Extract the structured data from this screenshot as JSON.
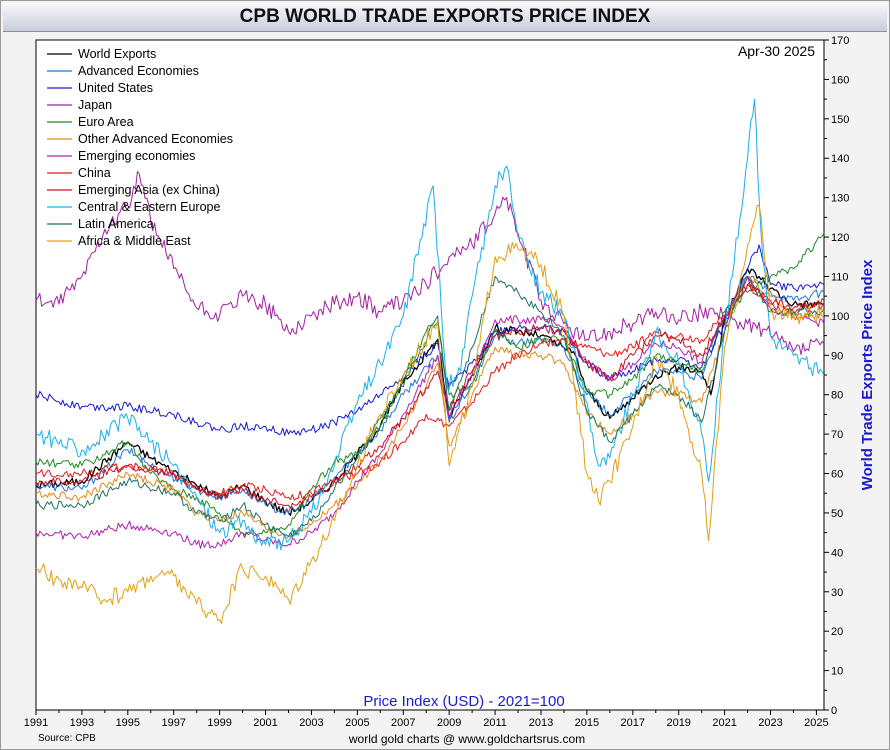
{
  "title": "CPB WORLD TRADE EXPORTS PRICE INDEX",
  "date_label": "Apr-30  2025",
  "source": "Source: CPB",
  "footer": "world gold charts @ www.goldchartsrus.com",
  "chart_data": {
    "type": "line",
    "title": "CPB WORLD TRADE EXPORTS PRICE INDEX",
    "xlabel": "Price Index (USD) - 2021=100",
    "ylabel": "World Trade Exports Price Index",
    "xlim": [
      1991,
      2025.33
    ],
    "ylim": [
      0,
      170
    ],
    "x_ticks": [
      "1991",
      "1993",
      "1995",
      "1997",
      "1999",
      "2001",
      "2003",
      "2005",
      "2007",
      "2009",
      "2011",
      "2013",
      "2015",
      "2017",
      "2019",
      "2021",
      "2023",
      "2025"
    ],
    "y_ticks": [
      0,
      10,
      20,
      30,
      40,
      50,
      60,
      70,
      80,
      90,
      100,
      110,
      120,
      130,
      140,
      150,
      160,
      170
    ],
    "grid": false,
    "legend_position": "top-left",
    "series": [
      {
        "name": "World Exports",
        "color": "#000000",
        "x": [
          1991,
          1993,
          1995,
          1996,
          1998,
          1999,
          2000,
          2001,
          2002,
          2003,
          2004,
          2005,
          2006,
          2007,
          2008.5,
          2009,
          2010,
          2011,
          2012,
          2013,
          2014,
          2014.5,
          2015,
          2016,
          2017,
          2018,
          2019,
          2020,
          2020.4,
          2021,
          2022,
          2022.5,
          2023,
          2024,
          2025.33
        ],
        "y": [
          57,
          58,
          68,
          64,
          57,
          54,
          57,
          53,
          50,
          53,
          58,
          65,
          72,
          83,
          94,
          74,
          85,
          97,
          96,
          95,
          92,
          90,
          81,
          74,
          79,
          85,
          87,
          86,
          80,
          99,
          112,
          110,
          107,
          103,
          103
        ]
      },
      {
        "name": "Advanced Economies",
        "color": "#1f77d4",
        "x": [
          1991,
          1993,
          1995,
          1996,
          1998,
          1999,
          2000,
          2001,
          2002,
          2003,
          2004,
          2005,
          2006,
          2007,
          2008.5,
          2009,
          2010,
          2011,
          2012,
          2013,
          2014,
          2015,
          2016,
          2017,
          2018,
          2019,
          2020,
          2021,
          2022,
          2023,
          2024,
          2025.33
        ],
        "y": [
          57,
          56,
          66,
          62,
          56,
          54,
          56,
          52,
          50,
          53,
          59,
          65,
          71,
          80,
          90,
          73,
          83,
          95,
          93,
          94,
          92,
          80,
          75,
          80,
          86,
          86,
          84,
          100,
          110,
          106,
          104,
          106
        ]
      },
      {
        "name": "United States",
        "color": "#1a1ad0",
        "x": [
          1991,
          1993,
          1995,
          1997,
          1998,
          1999,
          2000,
          2001,
          2002,
          2003,
          2004,
          2005,
          2006,
          2007,
          2008.5,
          2009,
          2010,
          2011,
          2012,
          2013,
          2014,
          2015,
          2016,
          2017,
          2018,
          2019,
          2020,
          2021,
          2022,
          2022.5,
          2023,
          2024,
          2025.33
        ],
        "y": [
          80,
          77,
          77,
          75,
          73,
          71,
          72,
          72,
          70,
          71,
          73,
          76,
          80,
          85,
          93,
          82,
          88,
          96,
          97,
          97,
          96,
          88,
          84,
          86,
          89,
          89,
          87,
          98,
          112,
          118,
          108,
          107,
          108
        ]
      },
      {
        "name": "Japan",
        "color": "#a020a0",
        "x": [
          1991,
          1992,
          1993,
          1994,
          1995,
          1995.5,
          1996,
          1997,
          1998,
          1999,
          2000,
          2001,
          2002,
          2003,
          2004,
          2005,
          2006,
          2007,
          2008,
          2009,
          2010,
          2011,
          2011.5,
          2012,
          2013,
          2014,
          2015,
          2016,
          2017,
          2018,
          2019,
          2020,
          2021,
          2022,
          2023,
          2024,
          2025.33
        ],
        "y": [
          104,
          103,
          110,
          122,
          128,
          136,
          124,
          112,
          102,
          100,
          105,
          103,
          96,
          100,
          103,
          105,
          101,
          104,
          108,
          115,
          118,
          126,
          130,
          121,
          104,
          98,
          94,
          96,
          98,
          101,
          99,
          101,
          100,
          98,
          95,
          91,
          93
        ]
      },
      {
        "name": "Euro Area",
        "color": "#1f8a1f",
        "x": [
          1991,
          1993,
          1995,
          1996,
          1997,
          1998,
          1999,
          2000,
          2001,
          2002,
          2003,
          2004,
          2005,
          2006,
          2007,
          2008,
          2008.5,
          2009,
          2010,
          2011,
          2012,
          2013,
          2014,
          2015,
          2016,
          2017,
          2018,
          2019,
          2020,
          2021,
          2022,
          2023,
          2024,
          2025.33
        ],
        "y": [
          63,
          62,
          68,
          60,
          56,
          54,
          50,
          45,
          45,
          47,
          56,
          63,
          65,
          72,
          84,
          96,
          98,
          80,
          82,
          97,
          92,
          94,
          94,
          81,
          80,
          84,
          90,
          88,
          86,
          101,
          106,
          110,
          112,
          121
        ]
      },
      {
        "name": "Other Advanced Economies",
        "color": "#e08a1a",
        "x": [
          1991,
          1993,
          1995,
          1997,
          1998,
          1999,
          2000,
          2001,
          2002,
          2003,
          2004,
          2005,
          2006,
          2007,
          2008.5,
          2009,
          2010,
          2011,
          2012,
          2013,
          2014,
          2015,
          2016,
          2017,
          2018,
          2019,
          2020,
          2021,
          2022,
          2023,
          2024,
          2025.33
        ],
        "y": [
          55,
          54,
          60,
          56,
          50,
          48,
          50,
          46,
          44,
          47,
          52,
          57,
          64,
          72,
          88,
          67,
          80,
          92,
          90,
          90,
          88,
          75,
          70,
          75,
          81,
          80,
          78,
          96,
          110,
          105,
          100,
          100
        ]
      },
      {
        "name": "Emerging economies",
        "color": "#b020b0",
        "x": [
          1991,
          1993,
          1995,
          1997,
          1998,
          1999,
          2000,
          2001,
          2002,
          2003,
          2004,
          2005,
          2006,
          2007,
          2008.5,
          2009,
          2010,
          2011,
          2012,
          2013,
          2014,
          2015,
          2016,
          2017,
          2018,
          2019,
          2020,
          2021,
          2022,
          2023,
          2024,
          2025.33
        ],
        "y": [
          45,
          44,
          47,
          45,
          42,
          42,
          45,
          43,
          42,
          45,
          50,
          58,
          65,
          75,
          90,
          74,
          85,
          99,
          99,
          99,
          97,
          88,
          84,
          88,
          93,
          92,
          88,
          100,
          110,
          102,
          100,
          98
        ]
      },
      {
        "name": "China",
        "color": "#e01a1a",
        "x": [
          1991,
          1993,
          1995,
          1997,
          1998,
          1999,
          2000,
          2001,
          2002,
          2003,
          2004,
          2005,
          2006,
          2007,
          2008,
          2009,
          2010,
          2011,
          2012,
          2013,
          2014,
          2015,
          2016,
          2017,
          2018,
          2019,
          2020,
          2021,
          2022,
          2023,
          2024,
          2025.33
        ],
        "y": [
          60,
          60,
          62,
          60,
          56,
          55,
          57,
          56,
          54,
          55,
          58,
          60,
          63,
          68,
          75,
          72,
          78,
          86,
          90,
          93,
          94,
          92,
          90,
          92,
          96,
          95,
          94,
          100,
          108,
          103,
          101,
          103
        ]
      },
      {
        "name": "Emerging Asia (ex China)",
        "color": "#c8101a",
        "x": [
          1991,
          1993,
          1995,
          1997,
          1998,
          1999,
          2000,
          2001,
          2002,
          2003,
          2004,
          2005,
          2006,
          2007,
          2008.5,
          2009,
          2010,
          2011,
          2012,
          2013,
          2014,
          2015,
          2016,
          2017,
          2018,
          2019,
          2020,
          2021,
          2022,
          2023,
          2024,
          2025.33
        ],
        "y": [
          58,
          58,
          62,
          60,
          56,
          54,
          56,
          53,
          52,
          54,
          58,
          62,
          67,
          74,
          86,
          76,
          86,
          95,
          96,
          97,
          96,
          88,
          84,
          90,
          95,
          94,
          90,
          100,
          108,
          104,
          102,
          104
        ]
      },
      {
        "name": "Central & Eastern Europe",
        "color": "#1ab0e8",
        "x": [
          1991,
          1993,
          1995,
          1996,
          1997,
          1998,
          1999,
          2000,
          2001,
          2002,
          2003,
          2004,
          2005,
          2006,
          2007,
          2008.3,
          2008.9,
          2009.5,
          2010,
          2011,
          2011.5,
          2012,
          2013,
          2014,
          2015,
          2015.5,
          2016,
          2017,
          2018,
          2019,
          2020,
          2020.3,
          2021,
          2022,
          2022.3,
          2022.6,
          2023,
          2024,
          2025.33
        ],
        "y": [
          70,
          66,
          74,
          68,
          62,
          54,
          45,
          48,
          42,
          43,
          50,
          62,
          78,
          88,
          100,
          133,
          82,
          86,
          105,
          133,
          138,
          120,
          106,
          100,
          78,
          62,
          64,
          80,
          96,
          88,
          70,
          58,
          96,
          140,
          155,
          120,
          95,
          90,
          85
        ]
      },
      {
        "name": "Latin America",
        "color": "#1f7060",
        "x": [
          1991,
          1993,
          1995,
          1997,
          1998,
          1999,
          2000,
          2001,
          2002,
          2003,
          2004,
          2005,
          2006,
          2007,
          2008.5,
          2009,
          2010,
          2011,
          2012,
          2013,
          2014,
          2015,
          2016,
          2017,
          2018,
          2019,
          2020,
          2021,
          2022,
          2023,
          2024,
          2025.33
        ],
        "y": [
          52,
          52,
          58,
          55,
          50,
          48,
          52,
          47,
          44,
          48,
          56,
          64,
          74,
          82,
          100,
          76,
          92,
          110,
          106,
          101,
          95,
          76,
          68,
          75,
          82,
          80,
          73,
          96,
          110,
          101,
          101,
          101
        ]
      },
      {
        "name": "Africa & Middle East",
        "color": "#e0a010",
        "x": [
          1991,
          1992,
          1993,
          1994,
          1995,
          1996,
          1997,
          1998,
          1999,
          2000,
          2001,
          2002,
          2003,
          2004,
          2005,
          2006,
          2007,
          2008.5,
          2009,
          2010,
          2011,
          2012,
          2013,
          2014,
          2015,
          2015.5,
          2016,
          2017,
          2018,
          2019,
          2020,
          2020.3,
          2021,
          2022,
          2022.5,
          2023,
          2024,
          2025.33
        ],
        "y": [
          36,
          33,
          31,
          28,
          30,
          34,
          34,
          27,
          23,
          36,
          34,
          28,
          38,
          48,
          62,
          75,
          85,
          99,
          62,
          82,
          115,
          117,
          113,
          100,
          60,
          53,
          58,
          72,
          90,
          80,
          60,
          43,
          92,
          118,
          128,
          101,
          100,
          101
        ]
      }
    ]
  }
}
